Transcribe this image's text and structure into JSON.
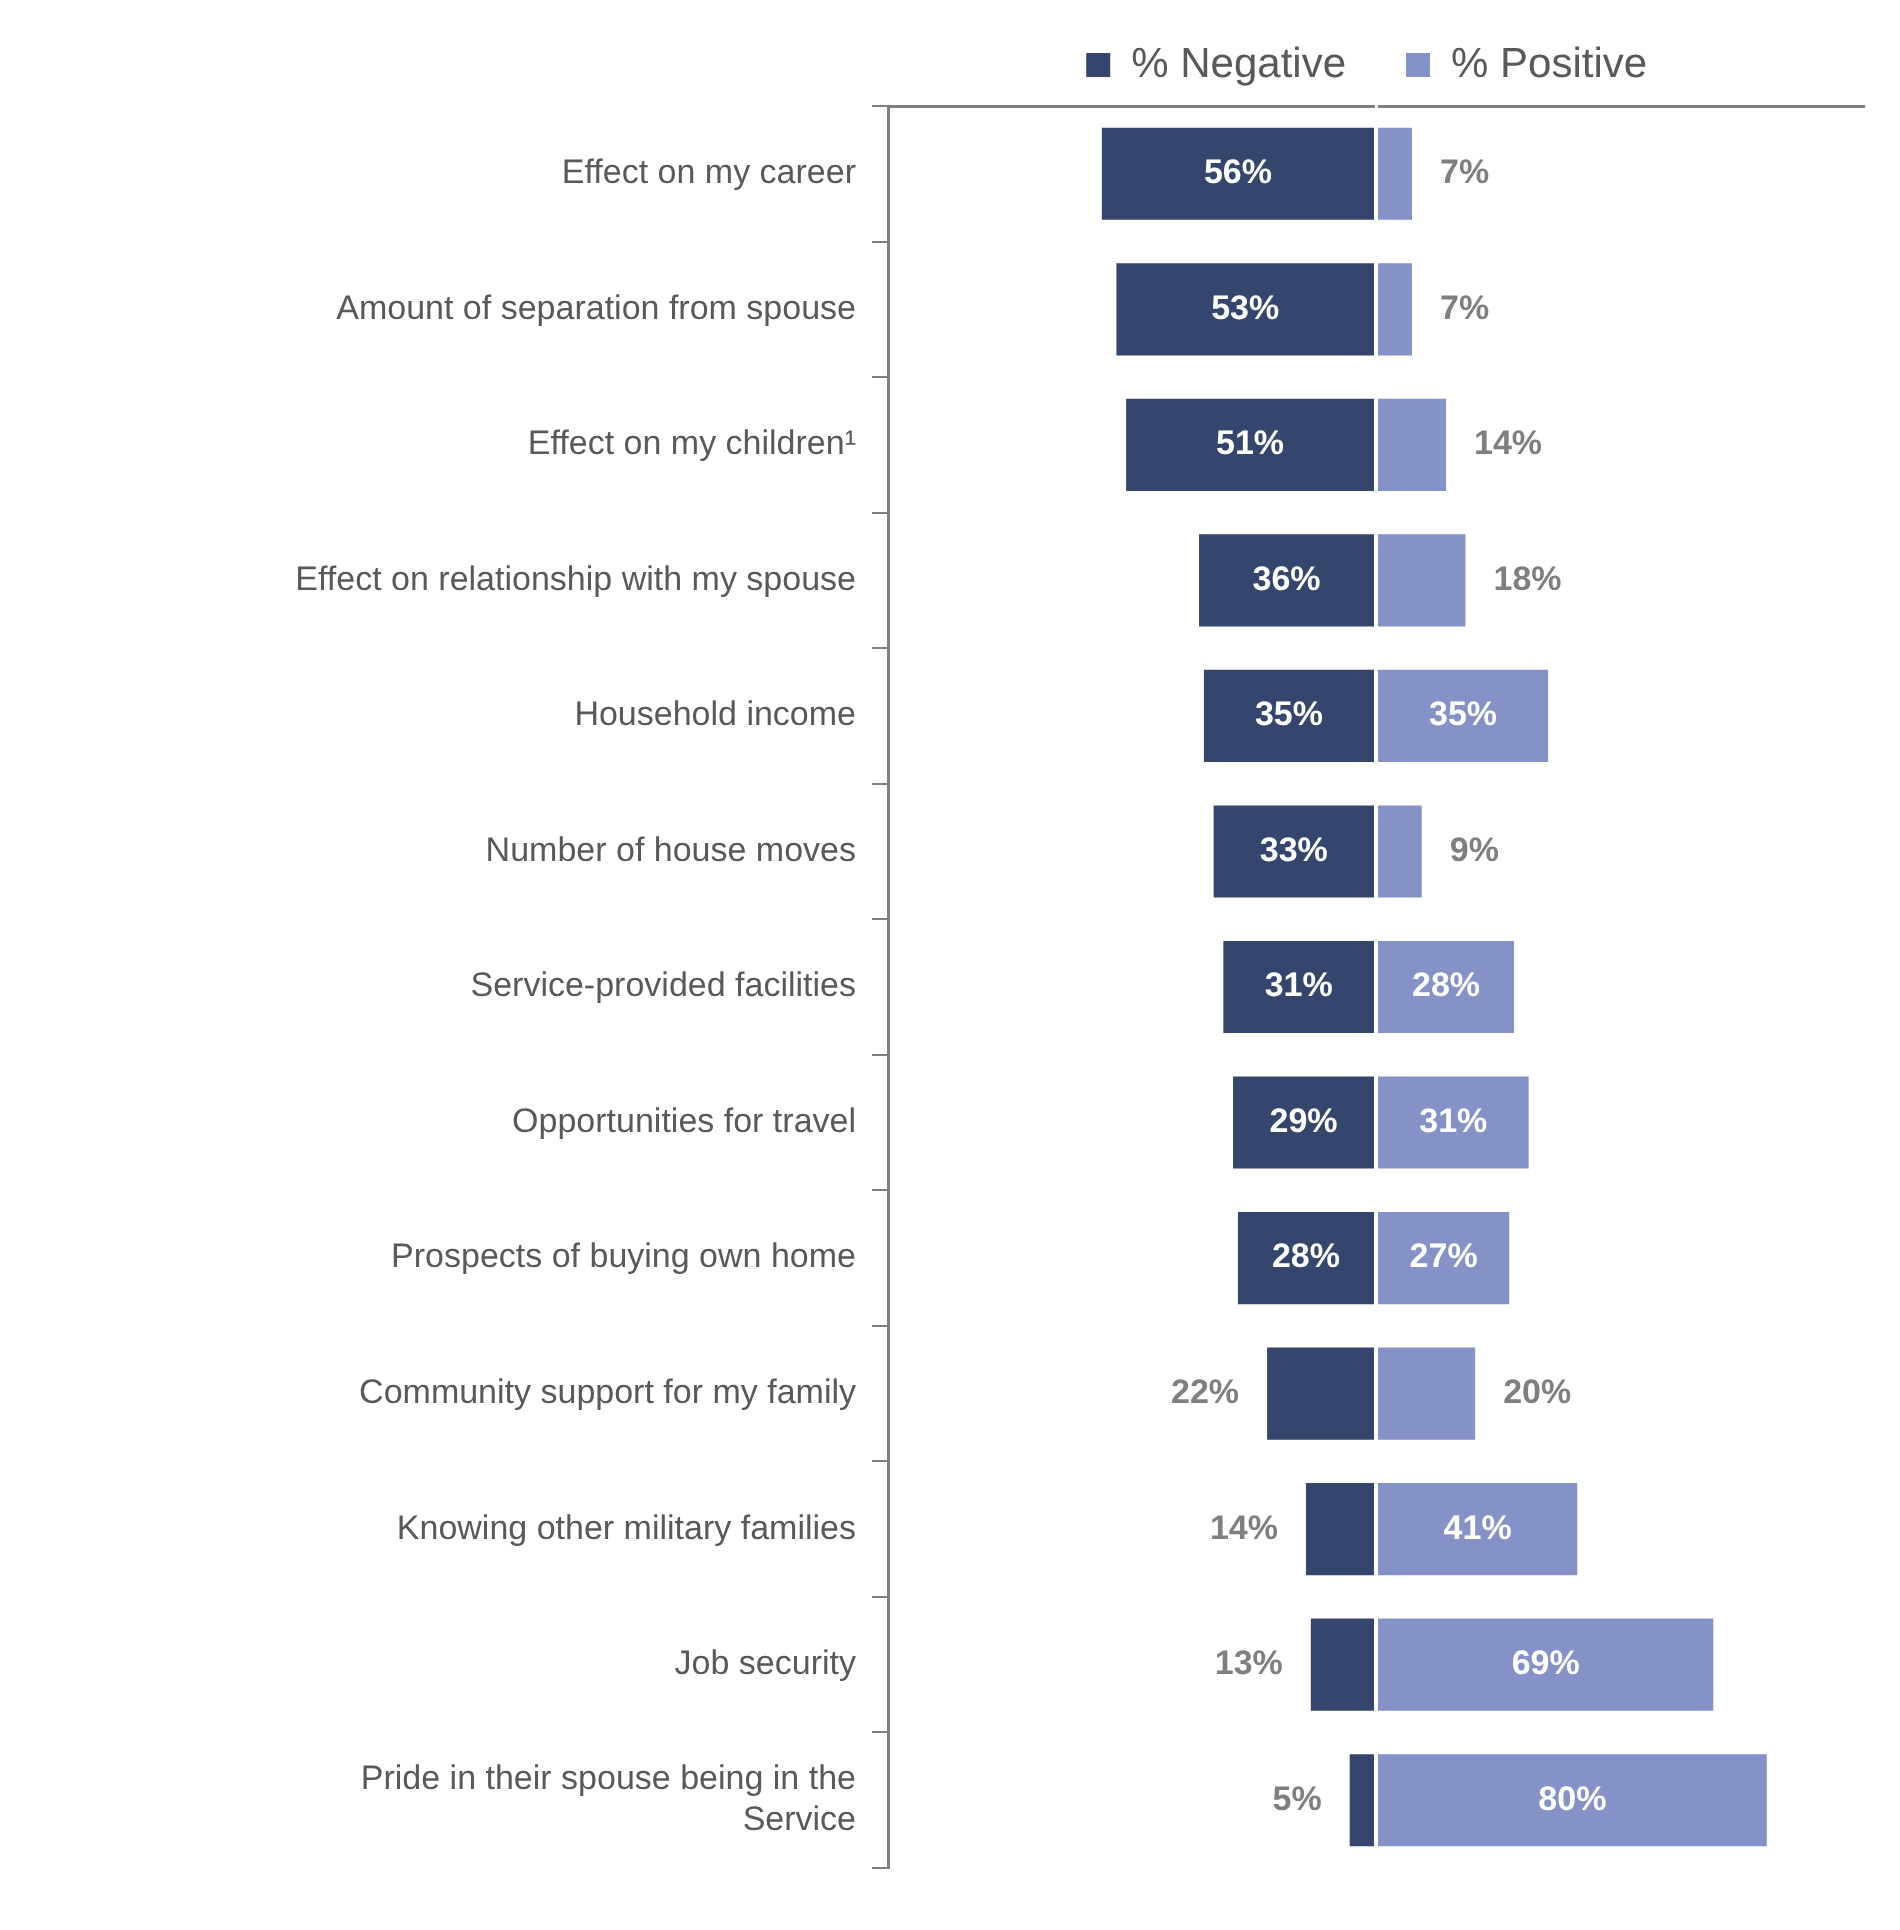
{
  "chart_data": [
    {
      "type": "bar",
      "orientation": "horizontal",
      "categories": [
        "Effect on my career",
        "Amount of separation from spouse",
        "Effect on my children¹",
        "Effect on relationship with my spouse",
        "Household income",
        "Number of house moves",
        "Service-provided facilities",
        "Opportunities for travel",
        "Prospects of buying own home",
        "Community support for my family",
        "Knowing other military families",
        "Job security",
        "Pride in their spouse being in the Service"
      ],
      "series": [
        {
          "name": "% Negative",
          "color": "#34466e",
          "values": [
            56,
            53,
            51,
            36,
            35,
            33,
            31,
            29,
            28,
            22,
            14,
            13,
            5
          ],
          "value_labels": [
            "56%",
            "53%",
            "51%",
            "36%",
            "35%",
            "33%",
            "31%",
            "29%",
            "28%",
            "22%",
            "14%",
            "13%",
            "5%"
          ]
        }
      ],
      "xlim": [
        100,
        0
      ],
      "tick_labels": "y",
      "grid": false,
      "legend": "top right"
    },
    {
      "type": "bar",
      "orientation": "horizontal",
      "categories": [
        null,
        null,
        null,
        null,
        null,
        null,
        null,
        null,
        null,
        null,
        null,
        null,
        null
      ],
      "series": [
        {
          "name": "% Positive",
          "color": "#8592c8",
          "values": [
            7,
            7,
            14,
            18,
            35,
            9,
            28,
            31,
            27,
            20,
            41,
            69,
            80
          ],
          "value_labels": [
            "7%",
            "7%",
            "14%",
            "18%",
            "35%",
            "9%",
            "28%",
            "31%",
            "27%",
            "20%",
            "41%",
            "69%",
            "80%"
          ]
        }
      ],
      "xlim": [
        0,
        100
      ],
      "tick_labels": false,
      "grid": false,
      "legend": "top left"
    }
  ]
}
